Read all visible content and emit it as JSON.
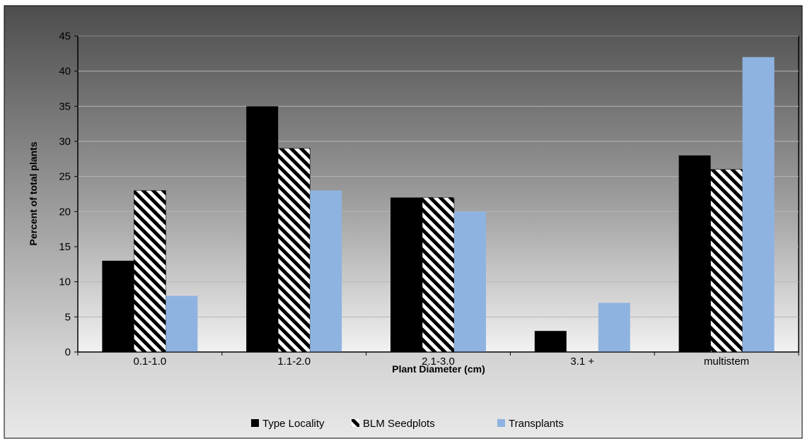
{
  "chart_data": {
    "type": "bar",
    "title": "",
    "xlabel": "Plant Diameter (cm)",
    "ylabel": "Percent of total plants",
    "categories": [
      "0.1-1.0",
      "1.1-2.0",
      "2.1-3.0",
      "3.1 +",
      "multistem"
    ],
    "series": [
      {
        "name": "Type Locality",
        "values": [
          13,
          35,
          22,
          3,
          28
        ],
        "color": "#000000",
        "pattern": "solid"
      },
      {
        "name": "BLM Seedplots",
        "values": [
          23,
          29,
          22,
          0,
          26
        ],
        "color": "#000000",
        "pattern": "diagonal-stripes"
      },
      {
        "name": "Transplants",
        "values": [
          8,
          23,
          20,
          7,
          42
        ],
        "color": "#8fb3e0",
        "pattern": "solid"
      }
    ],
    "ylim": [
      0,
      45
    ],
    "yticks": [
      0,
      5,
      10,
      15,
      20,
      25,
      30,
      35,
      40,
      45
    ],
    "grid": true,
    "legend_position": "bottom"
  }
}
